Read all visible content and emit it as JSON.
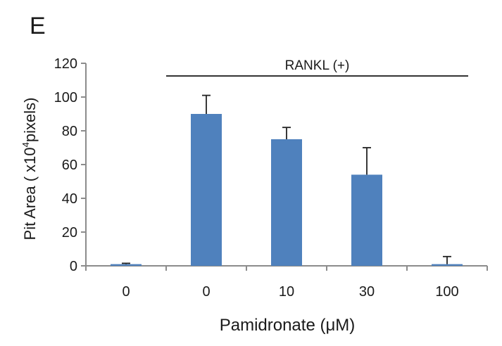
{
  "panel_label": "E",
  "chart_data": {
    "type": "bar",
    "categories": [
      "0",
      "0",
      "10",
      "30",
      "100"
    ],
    "values": [
      1,
      90,
      75,
      54,
      1
    ],
    "error_upper": [
      0.5,
      11,
      7,
      16,
      4.5
    ],
    "ylabel_prefix": "Pit Area ( x10",
    "ylabel_sup": "4",
    "ylabel_suffix": "pixels)",
    "xlabel": "Pamidronate (μM)",
    "ylim": [
      0,
      120
    ],
    "yticks": [
      0,
      20,
      40,
      60,
      80,
      100,
      120
    ],
    "grid": false,
    "bracket_label": "RANKL (+)",
    "bracket_span": [
      1,
      4
    ],
    "colors": {
      "bar": "#4f81bd",
      "axis": "#8c8c8c",
      "text": "#1a1a1a"
    }
  }
}
